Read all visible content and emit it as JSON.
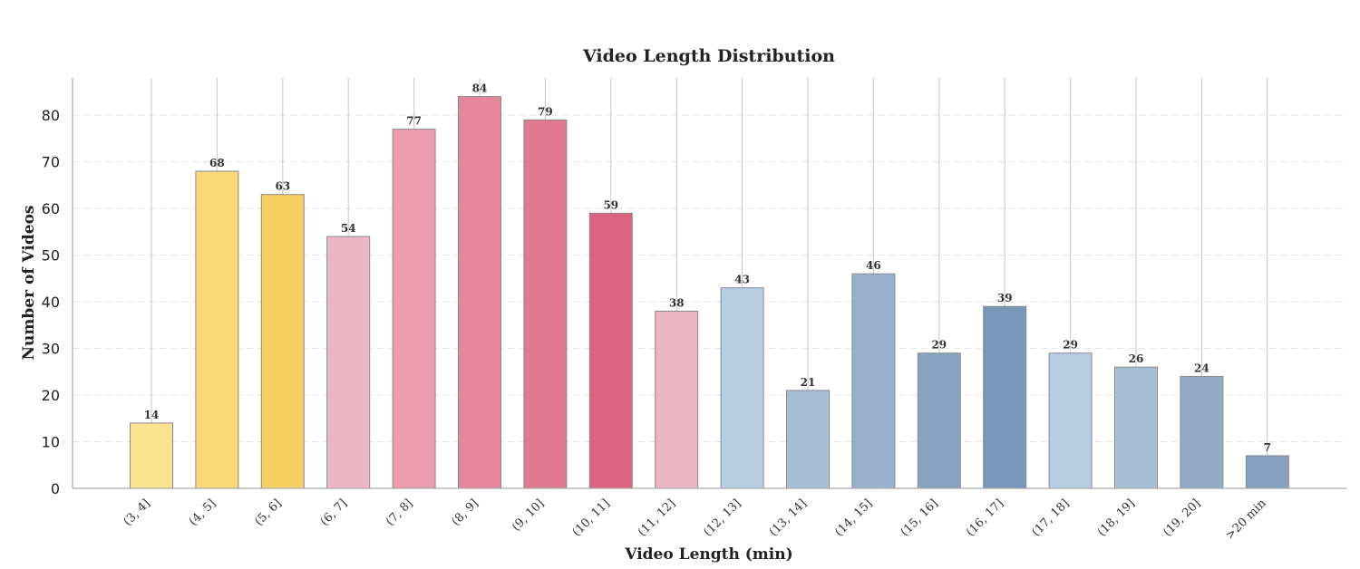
{
  "chart_data": {
    "type": "bar",
    "title": "Video Length Distribution",
    "xlabel": "Video Length (min)",
    "ylabel": "Number of Videos",
    "ylim": [
      0,
      88
    ],
    "yticks": [
      0,
      10,
      20,
      30,
      40,
      50,
      60,
      70,
      80
    ],
    "grid": true,
    "categories": [
      "(3, 4]",
      "(4, 5]",
      "(5, 6]",
      "(6, 7]",
      "(7, 8]",
      "(8, 9]",
      "(9, 10]",
      "(10, 11]",
      "(11, 12]",
      "(12, 13]",
      "(13, 14]",
      "(14, 15]",
      "(15, 16]",
      "(16, 17]",
      "(17, 18]",
      "(18, 19]",
      "(19, 20]",
      ">20 min"
    ],
    "values": [
      14,
      68,
      63,
      54,
      77,
      84,
      79,
      59,
      38,
      43,
      21,
      46,
      29,
      39,
      29,
      26,
      24,
      7
    ],
    "colors": [
      "#fae38f",
      "#f9d97a",
      "#f5cf61",
      "#ebb6c3",
      "#e99dae",
      "#e6889c",
      "#e07a90",
      "#dd6480",
      "#ebb6c3",
      "#bacce1",
      "#a8bdd6",
      "#9ab1cc",
      "#89a2c0",
      "#7a96b9",
      "#bacce1",
      "#a8bdd6",
      "#94abc7",
      "#86a0bf"
    ]
  }
}
